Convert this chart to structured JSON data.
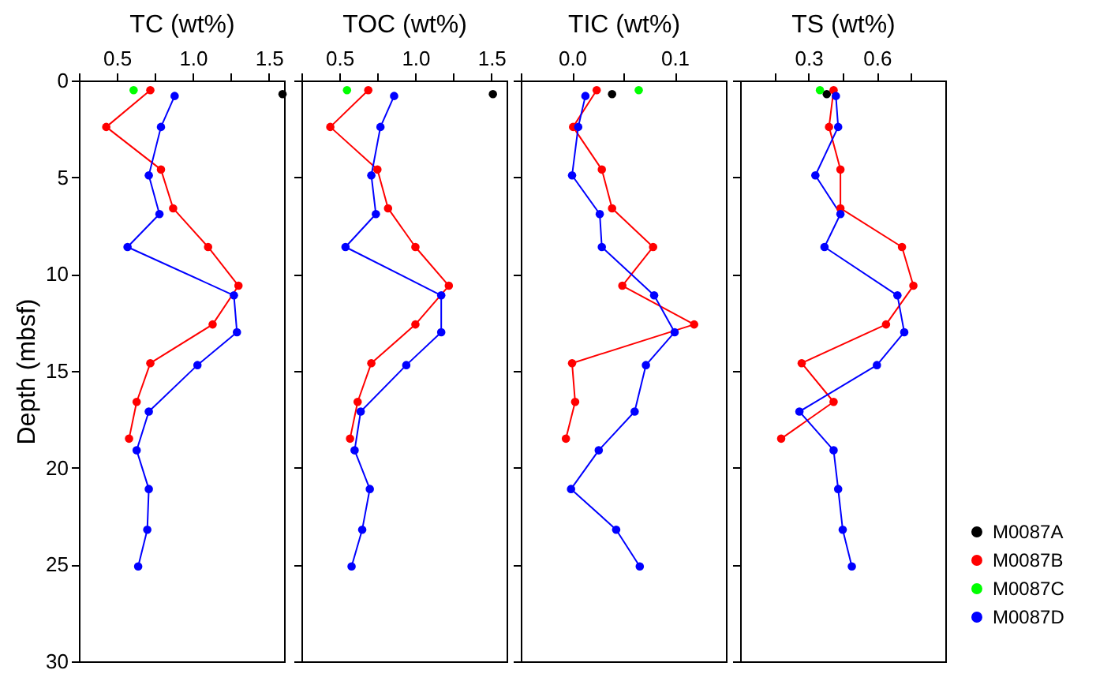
{
  "chart_data": [
    {
      "type": "line",
      "xlabel": "TC (wt%)",
      "ylabel": "Depth (mbsf)",
      "xlim": [
        0.25,
        1.6
      ],
      "xticks": [
        {
          "value": 0.25,
          "label": null
        },
        0.5,
        {
          "value": 0.75,
          "label": null
        },
        {
          "value": 1,
          "label": "1.0"
        },
        {
          "value": 1.25,
          "label": null
        },
        1.5
      ],
      "ylim": [
        30,
        0
      ],
      "yticks": [
        0,
        5,
        10,
        15,
        20,
        25,
        30
      ],
      "marker": "circle",
      "line_style": "solid",
      "series": [
        {
          "color": "#000000",
          "x": [
            1.59
          ],
          "values": [
            0.7
          ]
        },
        {
          "color": "#ff0000",
          "x": [
            0.72,
            0.43,
            0.79,
            0.87,
            1.1,
            1.3,
            1.13,
            0.72,
            0.63,
            0.58
          ],
          "values": [
            0.5,
            2.4,
            4.6,
            6.6,
            8.6,
            10.6,
            12.6,
            14.6,
            16.6,
            18.5
          ]
        },
        {
          "color": "#00ff00",
          "x": [
            0.61
          ],
          "values": [
            0.5
          ]
        },
        {
          "color": "#0000ff",
          "x": [
            0.88,
            0.79,
            0.71,
            0.78,
            0.57,
            1.27,
            1.29,
            1.03,
            0.71,
            0.63,
            0.71,
            0.7,
            0.64
          ],
          "values": [
            0.8,
            2.4,
            4.9,
            6.9,
            8.6,
            11.1,
            13.0,
            14.7,
            17.1,
            19.1,
            21.1,
            23.2,
            25.1
          ]
        }
      ]
    },
    {
      "type": "line",
      "xlabel": "TOC (wt%)",
      "xlim": [
        0.25,
        1.6
      ],
      "xticks": [
        {
          "value": 0.25,
          "label": null
        },
        0.5,
        {
          "value": 0.75,
          "label": null
        },
        {
          "value": 1,
          "label": "1.0"
        },
        {
          "value": 1.25,
          "label": null
        },
        1.5
      ],
      "ylim": [
        30,
        0
      ],
      "yticks": [
        0,
        5,
        10,
        15,
        20,
        25,
        30
      ],
      "tick_labels": "x",
      "marker": "circle",
      "line_style": "solid",
      "series": [
        {
          "color": "#000000",
          "x": [
            1.51
          ],
          "values": [
            0.7
          ]
        },
        {
          "color": "#ff0000",
          "x": [
            0.69,
            0.44,
            0.75,
            0.82,
            1.0,
            1.22,
            1.0,
            0.71,
            0.62,
            0.57
          ],
          "values": [
            0.5,
            2.4,
            4.6,
            6.6,
            8.6,
            10.6,
            12.6,
            14.6,
            16.6,
            18.5
          ]
        },
        {
          "color": "#00ff00",
          "x": [
            0.55
          ],
          "values": [
            0.5
          ]
        },
        {
          "color": "#0000ff",
          "x": [
            0.86,
            0.77,
            0.71,
            0.74,
            0.54,
            1.17,
            1.17,
            0.94,
            0.64,
            0.6,
            0.7,
            0.65,
            0.58
          ],
          "values": [
            0.8,
            2.4,
            4.9,
            6.9,
            8.6,
            11.1,
            13.0,
            14.7,
            17.1,
            19.1,
            21.1,
            23.2,
            25.1
          ]
        }
      ]
    },
    {
      "type": "line",
      "xlabel": "TIC (wt%)",
      "xlim": [
        -0.05,
        0.15
      ],
      "xticks": [
        {
          "value": -0.05,
          "label": null
        },
        {
          "value": 0,
          "label": "0.0"
        },
        {
          "value": 0.05,
          "label": null
        },
        0.1
      ],
      "ylim": [
        30,
        0
      ],
      "yticks": [
        0,
        5,
        10,
        15,
        20,
        25,
        30
      ],
      "tick_labels": "x",
      "marker": "circle",
      "line_style": "solid",
      "series": [
        {
          "color": "#000000",
          "x": [
            0.039
          ],
          "values": [
            0.7
          ]
        },
        {
          "color": "#ff0000",
          "x": [
            0.024,
            0.001,
            0.029,
            0.039,
            0.079,
            0.049,
            0.119,
            0.0,
            0.003,
            -0.006
          ],
          "values": [
            0.5,
            2.4,
            4.6,
            6.6,
            8.6,
            10.6,
            12.6,
            14.6,
            16.6,
            18.5
          ]
        },
        {
          "color": "#00ff00",
          "x": [
            0.065
          ],
          "values": [
            0.5
          ]
        },
        {
          "color": "#0000ff",
          "x": [
            0.013,
            0.006,
            0.0,
            0.027,
            0.029,
            0.08,
            0.1,
            0.072,
            0.061,
            0.026,
            -0.001,
            0.043,
            0.066
          ],
          "values": [
            0.8,
            2.4,
            4.9,
            6.9,
            8.6,
            11.1,
            13.0,
            14.7,
            17.1,
            19.1,
            21.1,
            23.2,
            25.1
          ]
        }
      ]
    },
    {
      "type": "line",
      "xlabel": "TS (wt%)",
      "xlim": [
        0,
        0.9
      ],
      "xticks": [
        {
          "value": 0.15,
          "label": null
        },
        0.3,
        {
          "value": 0.45,
          "label": null
        },
        0.6,
        {
          "value": 0.75,
          "label": null
        }
      ],
      "ylim": [
        30,
        0
      ],
      "yticks": [
        0,
        5,
        10,
        15,
        20,
        25,
        30
      ],
      "tick_labels": "x",
      "legend": "bottom right",
      "marker": "circle",
      "line_style": "solid",
      "series": [
        {
          "name": "M0087A",
          "color": "#000000",
          "x": [
            0.38
          ],
          "values": [
            0.7
          ]
        },
        {
          "name": "M0087B",
          "color": "#ff0000",
          "x": [
            0.41,
            0.39,
            0.44,
            0.44,
            0.71,
            0.76,
            0.64,
            0.27,
            0.41,
            0.18
          ],
          "values": [
            0.5,
            2.4,
            4.6,
            6.6,
            8.6,
            10.6,
            12.6,
            14.6,
            16.6,
            18.5
          ]
        },
        {
          "name": "M0087C",
          "color": "#00ff00",
          "x": [
            0.35
          ],
          "values": [
            0.5
          ]
        },
        {
          "name": "M0087D",
          "color": "#0000ff",
          "x": [
            0.42,
            0.43,
            0.33,
            0.44,
            0.37,
            0.69,
            0.72,
            0.6,
            0.26,
            0.41,
            0.43,
            0.45,
            0.49
          ],
          "values": [
            0.8,
            2.4,
            4.9,
            6.9,
            8.6,
            11.1,
            13.0,
            14.7,
            17.1,
            19.1,
            21.1,
            23.2,
            25.1
          ]
        }
      ]
    }
  ]
}
